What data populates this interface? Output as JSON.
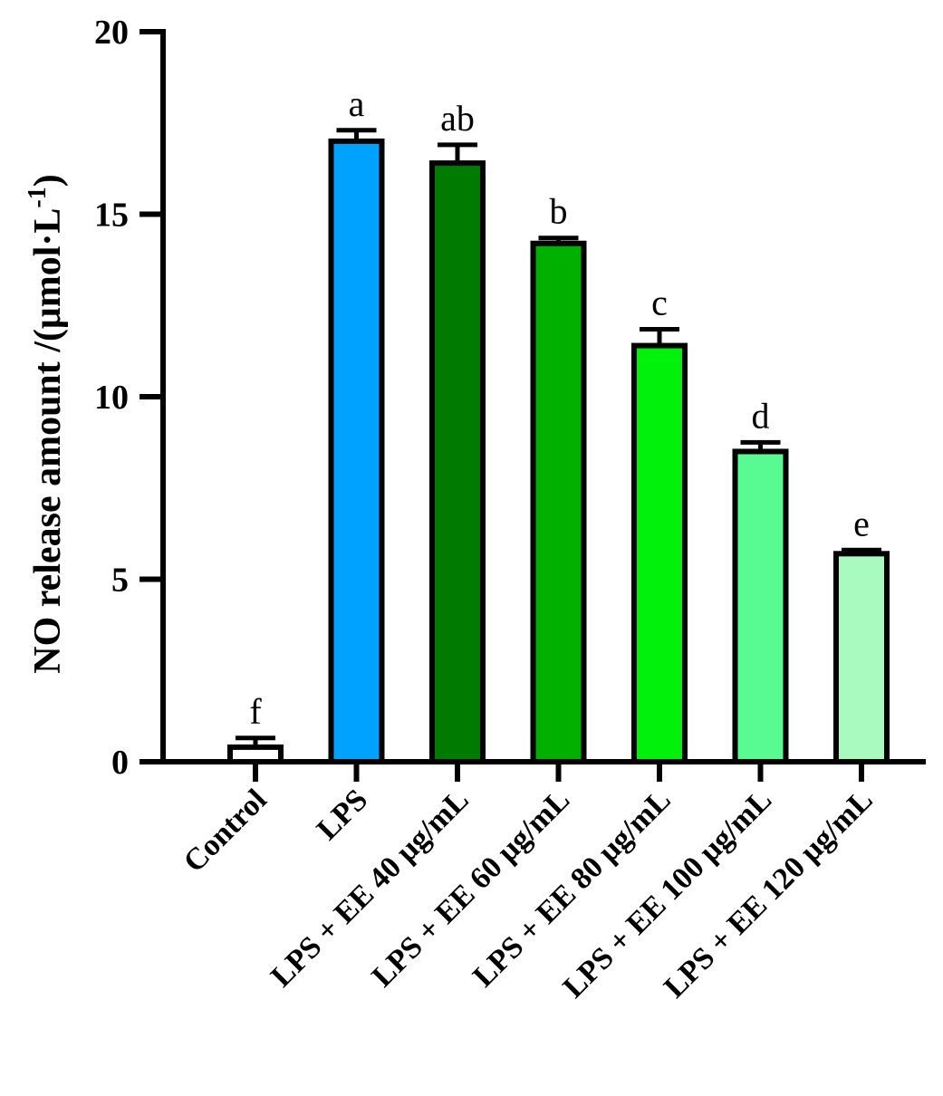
{
  "chart_data": {
    "type": "bar",
    "ylabel": "NO release amount /(μmol·L",
    "ylabel_sup": "-1",
    "ylabel_close": ")",
    "ylim": [
      0,
      20
    ],
    "yticks": [
      "0",
      "5",
      "10",
      "15",
      "20"
    ],
    "grid": false,
    "categories": [
      "Control",
      "LPS",
      "LPS + EE 40 μg/mL",
      "LPS + EE 60 μg/mL",
      "LPS + EE 80 μg/mL",
      "LPS + EE 100 μg/mL",
      "LPS + EE 120 μg/mL"
    ],
    "values": [
      0.4,
      17.0,
      16.4,
      14.2,
      11.4,
      8.5,
      5.7
    ],
    "errors": [
      0.25,
      0.3,
      0.5,
      0.15,
      0.45,
      0.25,
      0.1
    ],
    "significance": [
      "f",
      "a",
      "ab",
      "b",
      "c",
      "d",
      "e"
    ],
    "colors": [
      "#ffffff",
      "#00a2ff",
      "#007a00",
      "#00b000",
      "#00f20a",
      "#57fb92",
      "#a8fabf"
    ]
  }
}
